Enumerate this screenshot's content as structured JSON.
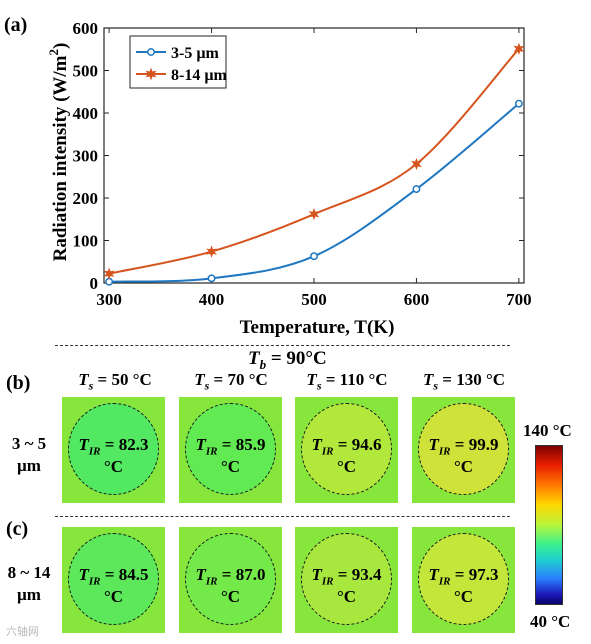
{
  "panel_a": {
    "label": "(a)",
    "chart_data": {
      "type": "line",
      "x": [
        300,
        400,
        500,
        600,
        700
      ],
      "series": [
        {
          "name": "3-5 µm",
          "values": [
            3,
            11,
            63,
            221,
            422
          ],
          "color": "#1f77c1",
          "marker": "circle"
        },
        {
          "name": "8-14 µm",
          "values": [
            22,
            74,
            162,
            280,
            551
          ],
          "color": "#d6541e",
          "marker": "star"
        }
      ],
      "xlabel": "Temperature, T(K)",
      "ylabel": "Radiation intensity (W/m",
      "ylabel_sup": "2",
      "ylabel_close": ")",
      "xlim": [
        295,
        705
      ],
      "ylim": [
        0,
        600
      ],
      "xticks": [
        "300",
        "400",
        "500",
        "600",
        "700"
      ],
      "yticks": [
        "0",
        "100",
        "200",
        "300",
        "400",
        "500",
        "600"
      ],
      "legend_position": "top-left",
      "grid": false
    }
  },
  "thermal": {
    "tb_sym": "T",
    "tb_sub": "b",
    "tb_val": " = 90°C",
    "label_b": "(b)",
    "label_c": "(c)",
    "ts_sym": "T",
    "ts_sub": "s",
    "columns": [
      " = 50 °C",
      " = 70 °C",
      " = 110 °C",
      " = 130 °C"
    ],
    "row_b_label_1": "3 ~ 5",
    "row_b_label_2": "µm",
    "row_c_label_1": "8 ~ 14",
    "row_c_label_2": "µm",
    "tir_sym": "T",
    "tir_sub": "IR",
    "unit": "°C",
    "row_b_values": [
      " = 82.3",
      " = 85.9",
      " = 94.6",
      " = 99.9"
    ],
    "row_c_values": [
      " = 84.5",
      " = 87.0",
      " = 93.4",
      " = 97.3"
    ],
    "circle_colors_b": [
      "#52e862",
      "#62ea52",
      "#b2e83c",
      "#cfe23a"
    ],
    "circle_colors_c": [
      "#5ce85a",
      "#74ea4a",
      "#a8e83e",
      "#c2e63a"
    ],
    "bg_color": "#86e63c",
    "colorbar_max": "140 °C",
    "colorbar_min": "40 °C"
  },
  "watermark": "六轴网"
}
